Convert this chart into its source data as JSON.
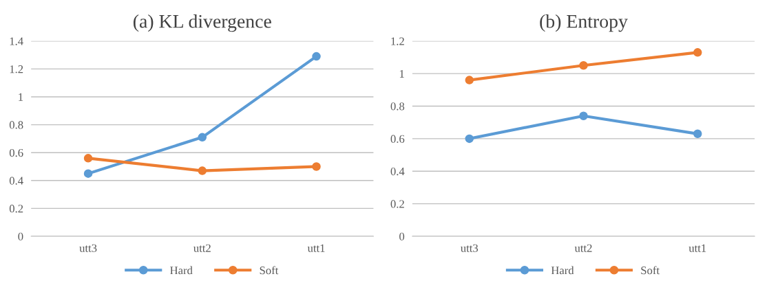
{
  "chart_data": [
    {
      "type": "line",
      "title": "(a) KL divergence",
      "categories": [
        "utt3",
        "utt2",
        "utt1"
      ],
      "ylim": [
        0,
        1.4
      ],
      "yticks": [
        0,
        0.2,
        0.4,
        0.6,
        0.8,
        1,
        1.2,
        1.4
      ],
      "grid": "y",
      "legend": "bottom",
      "marker": "circle",
      "line_style": "solid",
      "series": [
        {
          "name": "Hard",
          "color": "#5b9bd5",
          "values": [
            0.45,
            0.71,
            1.29
          ]
        },
        {
          "name": "Soft",
          "color": "#ed7d31",
          "values": [
            0.56,
            0.47,
            0.5
          ]
        }
      ]
    },
    {
      "type": "line",
      "title": "(b) Entropy",
      "categories": [
        "utt3",
        "utt2",
        "utt1"
      ],
      "ylim": [
        0,
        1.2
      ],
      "yticks": [
        0,
        0.2,
        0.4,
        0.6,
        0.8,
        1,
        1.2
      ],
      "grid": "y",
      "legend": "bottom",
      "marker": "circle",
      "line_style": "solid",
      "series": [
        {
          "name": "Hard",
          "color": "#5b9bd5",
          "values": [
            0.6,
            0.74,
            0.63
          ]
        },
        {
          "name": "Soft",
          "color": "#ed7d31",
          "values": [
            0.96,
            1.05,
            1.13
          ]
        }
      ]
    }
  ]
}
